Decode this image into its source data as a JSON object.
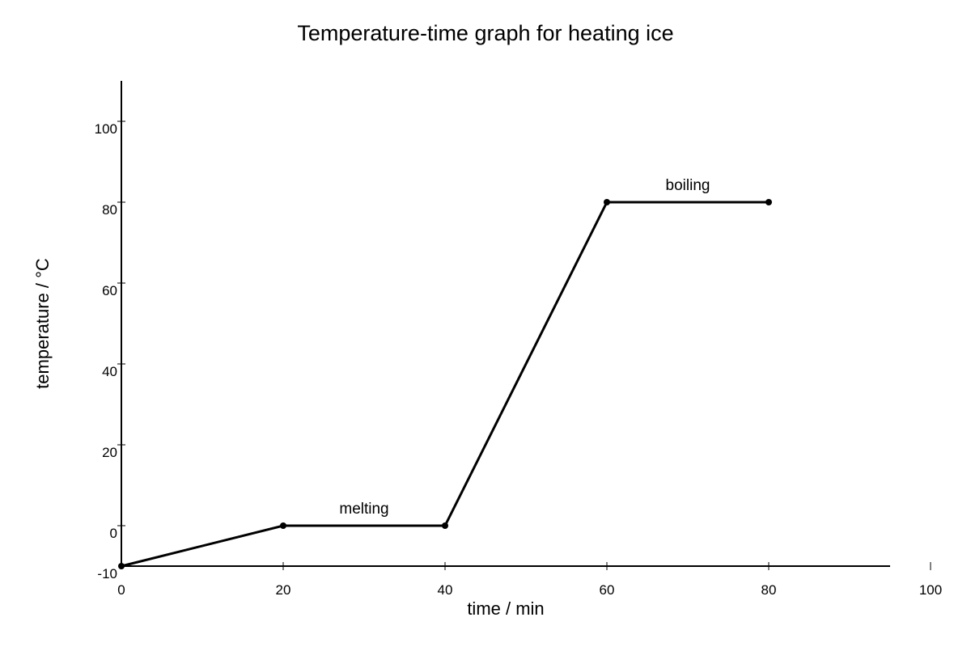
{
  "chart_data": {
    "type": "line",
    "title": "Temperature-time graph for heating ice",
    "xlabel": "time / min",
    "ylabel": "temperature / °C",
    "xlim": [
      0,
      105
    ],
    "ylim": [
      -10,
      100
    ],
    "x_ticks": [
      0,
      20,
      40,
      60,
      80,
      100
    ],
    "y_ticks": [
      -10,
      0,
      20,
      40,
      60,
      80,
      100
    ],
    "grid": false,
    "series": [
      {
        "x": [
          0,
          20,
          40,
          60,
          80
        ],
        "y": [
          -10,
          0,
          0,
          80,
          80
        ],
        "color": "#000000"
      }
    ],
    "annotations": [
      {
        "text": "melting",
        "x": 30,
        "y": 0
      },
      {
        "text": "boiling",
        "x": 70,
        "y": 80
      }
    ]
  }
}
